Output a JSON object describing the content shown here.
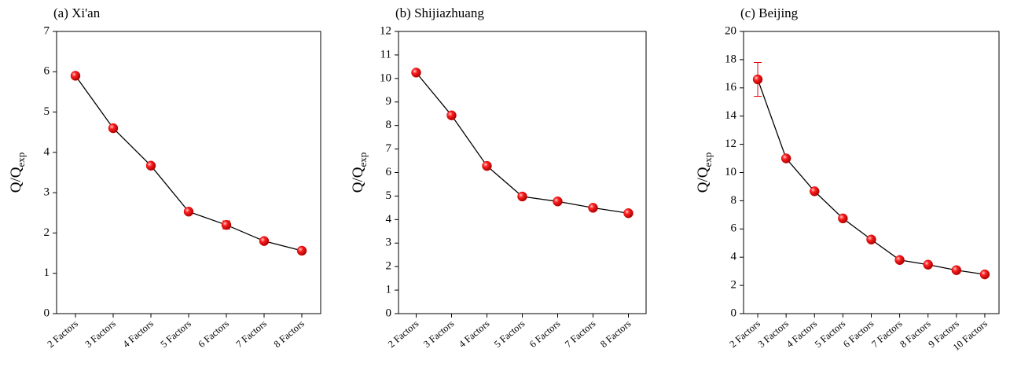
{
  "chart_data": [
    {
      "type": "line",
      "title": "(a) Xi'an",
      "y_label": "Q/Q",
      "y_label_sub": "exp",
      "categories": [
        "2 Factors",
        "3 Factors",
        "4 Factors",
        "5 Factors",
        "6 Factors",
        "7 Factors",
        "8 Factors"
      ],
      "values": [
        5.9,
        4.6,
        3.67,
        2.53,
        2.2,
        1.8,
        1.56
      ],
      "errors": [
        null,
        null,
        null,
        null,
        0.1,
        null,
        null
      ],
      "color": "#e00000",
      "line_color": "#000000",
      "ylim": [
        0,
        7
      ],
      "yticks": [
        0,
        1,
        2,
        3,
        4,
        5,
        6,
        7
      ]
    },
    {
      "type": "line",
      "title": "(b) Shijiazhuang",
      "y_label": "Q/Q",
      "y_label_sub": "exp",
      "categories": [
        "2 Factors",
        "3 Factors",
        "4 Factors",
        "5 Factors",
        "6 Factors",
        "7 Factors",
        "8 Factors"
      ],
      "values": [
        10.25,
        8.43,
        6.28,
        4.98,
        4.77,
        4.5,
        4.27
      ],
      "errors": [
        null,
        null,
        null,
        null,
        null,
        null,
        null
      ],
      "color": "#e00000",
      "line_color": "#000000",
      "ylim": [
        0,
        12
      ],
      "yticks": [
        0,
        1,
        2,
        3,
        4,
        5,
        6,
        7,
        8,
        9,
        10,
        11,
        12
      ]
    },
    {
      "type": "line",
      "title": "(c) Beijing",
      "y_label": "Q/Q",
      "y_label_sub": "exp",
      "categories": [
        "2 Factors",
        "3 Factors",
        "4 Factors",
        "5 Factors",
        "6 Factors",
        "7 Factors",
        "8 Factors",
        "9 Factors",
        "10 Factors"
      ],
      "values": [
        16.6,
        11.0,
        8.67,
        6.75,
        5.25,
        3.8,
        3.47,
        3.08,
        2.78
      ],
      "errors": [
        1.2,
        null,
        null,
        null,
        null,
        null,
        null,
        null,
        null
      ],
      "color": "#e00000",
      "line_color": "#000000",
      "ylim": [
        0,
        20
      ],
      "yticks": [
        0,
        2,
        4,
        6,
        8,
        10,
        12,
        14,
        16,
        18,
        20
      ]
    }
  ]
}
